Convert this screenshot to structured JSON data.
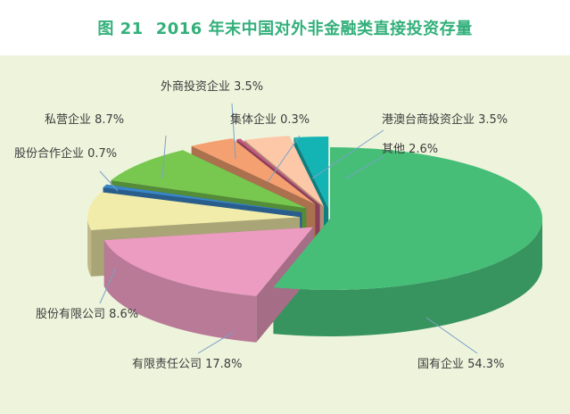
{
  "figure": {
    "label": "图 21",
    "title": "2016 年末中国对外非金融类直接投资存量"
  },
  "chart_data": {
    "type": "pie",
    "style": "3d-exploded",
    "title": "2016 年末中国对外非金融类直接投资存量",
    "unit": "%",
    "slices": [
      {
        "name": "国有企业",
        "value": 54.3,
        "color": "#46be78",
        "label_text": "国有企业 54.3%"
      },
      {
        "name": "有限责任公司",
        "value": 17.8,
        "color": "#ec9cc0",
        "label_text": "有限责任公司 17.8%"
      },
      {
        "name": "股份有限公司",
        "value": 8.6,
        "color": "#f2ecaa",
        "label_text": "股份有限公司 8.6%"
      },
      {
        "name": "股份合作企业",
        "value": 0.7,
        "color": "#3a86c8",
        "label_text": "股份合作企业 0.7%"
      },
      {
        "name": "私营企业",
        "value": 8.7,
        "color": "#78c850",
        "label_text": "私营企业 8.7%"
      },
      {
        "name": "外商投资企业",
        "value": 3.5,
        "color": "#f4a070",
        "label_text": "外商投资企业 3.5%"
      },
      {
        "name": "集体企业",
        "value": 0.3,
        "color": "#c45a80",
        "label_text": "集体企业 0.3%"
      },
      {
        "name": "港澳台商投资企业",
        "value": 3.5,
        "color": "#fcc8a8",
        "label_text": "港澳台商投资企业 3.5%"
      },
      {
        "name": "其他",
        "value": 2.6,
        "color": "#14b4b4",
        "label_text": "其他 2.6%"
      }
    ]
  }
}
